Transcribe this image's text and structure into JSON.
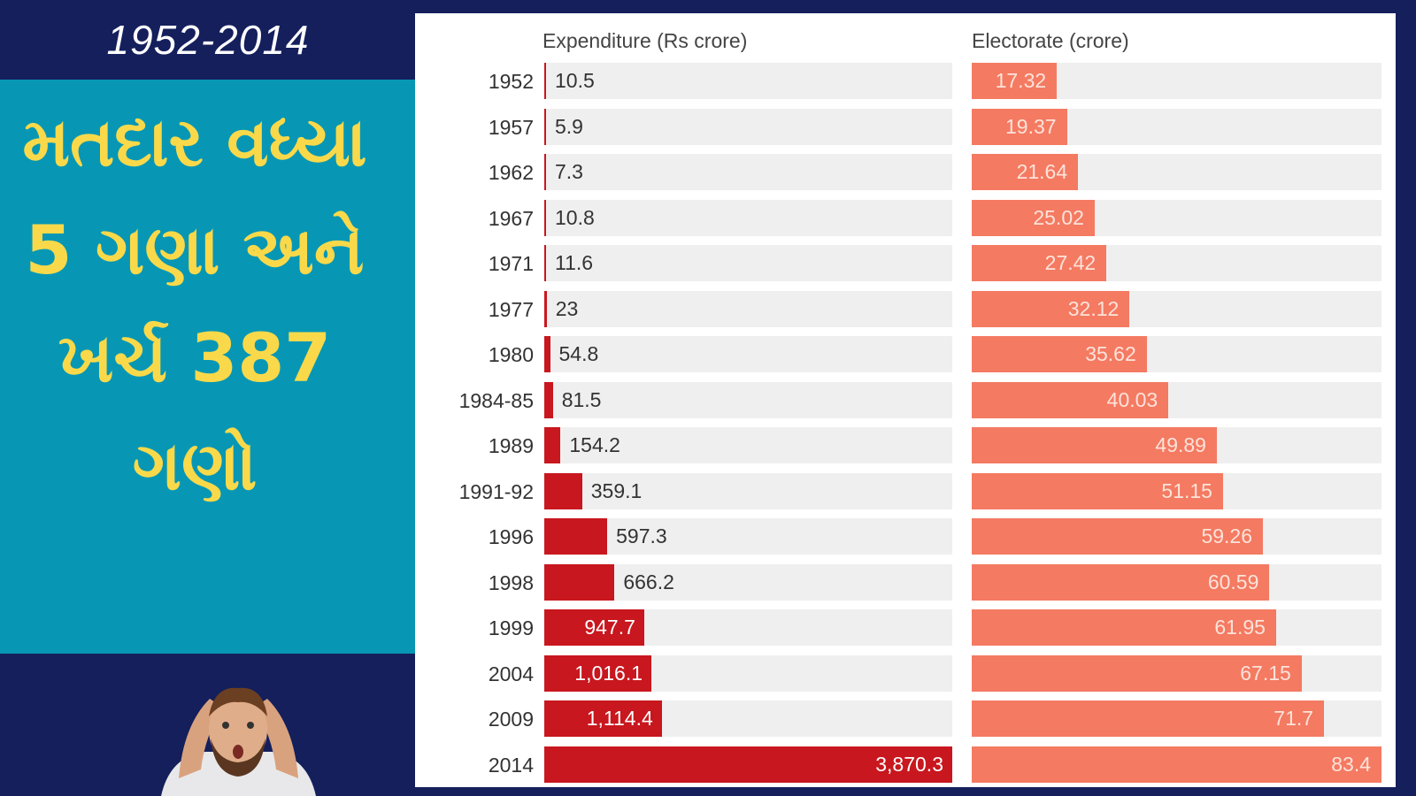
{
  "sidebar": {
    "year_range": "1952-2014",
    "headline_lines": [
      "મતદાર વધ્યા",
      "5 ગણા અને",
      "ખર્ચ 387",
      "ગણો"
    ],
    "image": "surprised-man-holding-head"
  },
  "colors": {
    "background": "#141f5c",
    "teal": "#0797b5",
    "headline": "#f9d94a",
    "expenditure": "#c8171e",
    "electorate": "#f47a62",
    "track": "#efefef"
  },
  "chart_data": {
    "type": "bar",
    "orientation": "horizontal",
    "categories": [
      "1952",
      "1957",
      "1962",
      "1967",
      "1971",
      "1977",
      "1980",
      "1984-85",
      "1989",
      "1991-92",
      "1996",
      "1998",
      "1999",
      "2004",
      "2009",
      "2014"
    ],
    "series": [
      {
        "name": "Expenditure (Rs crore)",
        "values": [
          10.5,
          5.9,
          7.3,
          10.8,
          11.6,
          23,
          54.8,
          81.5,
          154.2,
          359.1,
          597.3,
          666.2,
          947.7,
          1016.1,
          1114.4,
          3870.3
        ],
        "labels": [
          "10.5",
          "5.9",
          "7.3",
          "10.8",
          "11.6",
          "23",
          "54.8",
          "81.5",
          "154.2",
          "359.1",
          "597.3",
          "666.2",
          "947.7",
          "1,016.1",
          "1,114.4",
          "3,870.3"
        ],
        "xlim": [
          0,
          3870.3
        ]
      },
      {
        "name": "Electorate (crore)",
        "values": [
          17.32,
          19.37,
          21.64,
          25.02,
          27.42,
          32.12,
          35.62,
          40.03,
          49.89,
          51.15,
          59.26,
          60.59,
          61.95,
          67.15,
          71.7,
          83.4
        ],
        "labels": [
          "17.32",
          "19.37",
          "21.64",
          "25.02",
          "27.42",
          "32.12",
          "35.62",
          "40.03",
          "49.89",
          "51.15",
          "59.26",
          "60.59",
          "61.95",
          "67.15",
          "71.7",
          "83.4"
        ],
        "xlim": [
          0,
          83.4
        ]
      }
    ]
  }
}
